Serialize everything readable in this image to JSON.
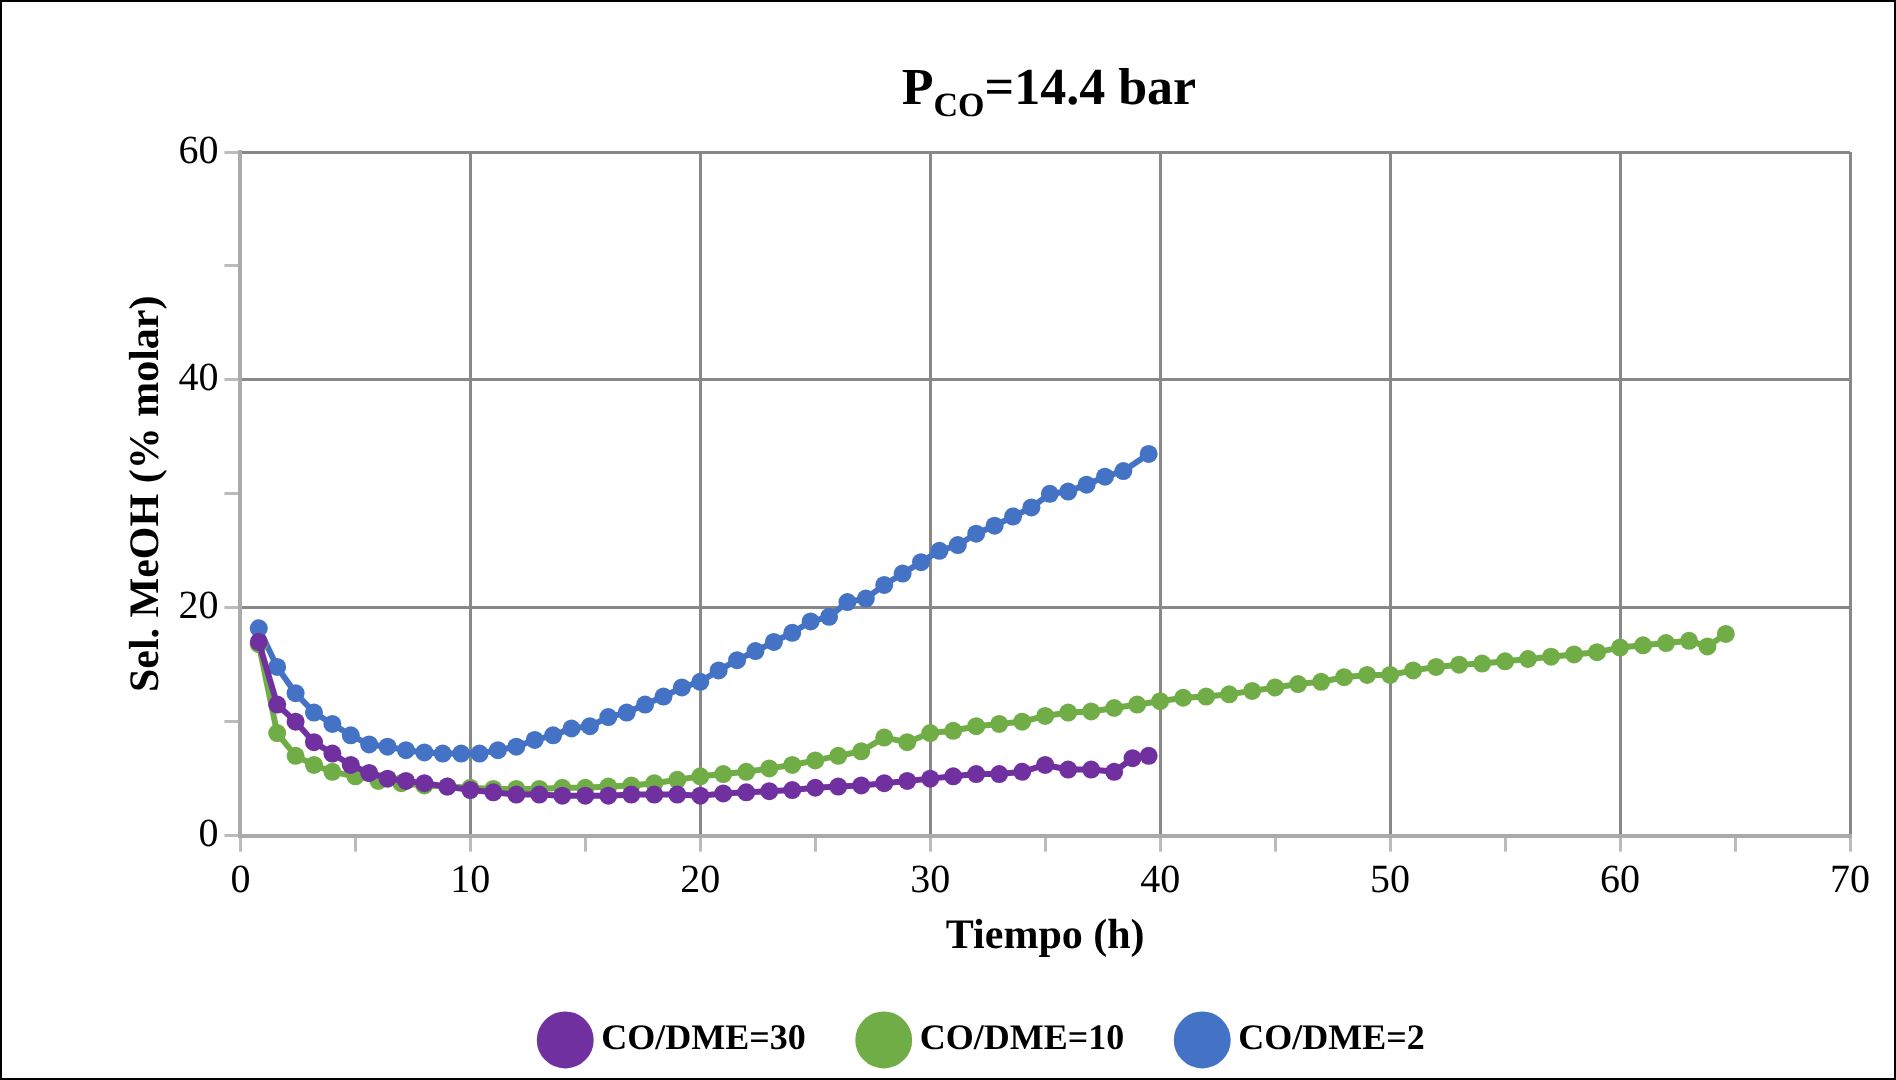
{
  "chart_data": {
    "type": "line",
    "title": "P$_{CO}$=14.4 bar",
    "xlabel": "Tiempo (h)",
    "ylabel": "Sel. MeOH (% molar)",
    "xlim": [
      0,
      70
    ],
    "xticks": [
      0,
      {
        "value": 5,
        "label": null
      },
      10,
      {
        "value": 15,
        "label": null
      },
      20,
      {
        "value": 25,
        "label": null
      },
      30,
      {
        "value": 35,
        "label": null
      },
      40,
      {
        "value": 45,
        "label": null
      },
      50,
      {
        "value": 55,
        "label": null
      },
      60,
      {
        "value": 65,
        "label": null
      },
      70
    ],
    "ylim": [
      0,
      60
    ],
    "yticks": [
      0,
      {
        "value": 10,
        "label": null
      },
      20,
      {
        "value": 30,
        "label": null
      },
      40,
      {
        "value": 50,
        "label": null
      },
      60
    ],
    "grid": true,
    "legend": "bottom",
    "marker": "circle",
    "line_style": "solid",
    "series": [
      {
        "name": "CO/DME=30",
        "color": "#7030a0",
        "x": [
          0.8,
          1.6,
          2.4,
          3.2,
          4,
          4.8,
          5.6,
          6.4,
          7.2,
          8,
          9,
          10,
          11,
          12,
          13,
          14,
          15,
          16,
          17,
          18,
          19,
          20,
          21,
          22,
          23,
          24,
          25,
          26,
          27,
          28,
          29,
          30,
          31,
          32,
          33,
          34,
          35,
          36,
          37,
          38,
          38.8,
          39.5
        ],
        "values": [
          17,
          11.5,
          10,
          8.2,
          7.2,
          6.2,
          5.5,
          5,
          4.8,
          4.6,
          4.3,
          4,
          3.8,
          3.6,
          3.6,
          3.5,
          3.5,
          3.5,
          3.6,
          3.6,
          3.6,
          3.5,
          3.7,
          3.8,
          3.9,
          4,
          4.2,
          4.3,
          4.4,
          4.6,
          4.8,
          5,
          5.2,
          5.4,
          5.4,
          5.6,
          6.2,
          5.8,
          5.8,
          5.6,
          6.8,
          7
        ]
      },
      {
        "name": "CO/DME=10",
        "color": "#70ad47",
        "x": [
          0.8,
          1.6,
          2.4,
          3.2,
          4,
          5,
          6,
          7,
          8,
          9,
          10,
          11,
          12,
          13,
          14,
          15,
          16,
          17,
          18,
          19,
          20,
          21,
          22,
          23,
          24,
          25,
          26,
          27,
          28,
          29,
          30,
          31,
          32,
          33,
          34,
          35,
          36,
          37,
          38,
          39,
          40,
          41,
          42,
          43,
          44,
          45,
          46,
          47,
          48,
          49,
          50,
          51,
          52,
          53,
          54,
          55,
          56,
          57,
          58,
          59,
          60,
          61,
          62,
          63,
          63.8,
          64.6
        ],
        "values": [
          16.8,
          9,
          7,
          6.2,
          5.6,
          5.2,
          4.8,
          4.6,
          4.4,
          4.3,
          4.2,
          4.1,
          4.1,
          4.1,
          4.2,
          4.2,
          4.3,
          4.4,
          4.6,
          4.9,
          5.2,
          5.4,
          5.6,
          5.9,
          6.2,
          6.6,
          7,
          7.4,
          8.6,
          8.2,
          9,
          9.2,
          9.6,
          9.8,
          10,
          10.5,
          10.8,
          10.9,
          11.2,
          11.5,
          11.8,
          12.1,
          12.2,
          12.4,
          12.7,
          13,
          13.3,
          13.5,
          13.9,
          14.1,
          14.1,
          14.5,
          14.8,
          15,
          15.1,
          15.3,
          15.5,
          15.7,
          15.9,
          16.1,
          16.5,
          16.7,
          16.9,
          17.1,
          16.6,
          17.7
        ]
      },
      {
        "name": "CO/DME=2",
        "color": "#4472c4",
        "x": [
          0.8,
          1.6,
          2.4,
          3.2,
          4,
          4.8,
          5.6,
          6.4,
          7.2,
          8,
          8.8,
          9.6,
          10.4,
          11.2,
          12,
          12.8,
          13.6,
          14.4,
          15.2,
          16,
          16.8,
          17.6,
          18.4,
          19.2,
          20,
          20.8,
          21.6,
          22.4,
          23.2,
          24,
          24.8,
          25.6,
          26.4,
          27.2,
          28,
          28.8,
          29.6,
          30.4,
          31.2,
          32,
          32.8,
          33.6,
          34.4,
          35.2,
          36,
          36.8,
          37.6,
          38.4,
          39.5
        ],
        "values": [
          18.2,
          14.8,
          12.5,
          10.8,
          9.8,
          8.8,
          8,
          7.8,
          7.5,
          7.3,
          7.2,
          7.2,
          7.2,
          7.5,
          7.8,
          8.4,
          8.8,
          9.4,
          9.6,
          10.4,
          10.8,
          11.5,
          12.2,
          13,
          13.5,
          14.5,
          15.4,
          16.2,
          17,
          17.8,
          18.8,
          19.2,
          20.5,
          20.8,
          22,
          23,
          24,
          25,
          25.5,
          26.5,
          27.2,
          28,
          28.8,
          30,
          30.2,
          30.8,
          31.5,
          32,
          33.5
        ]
      }
    ]
  }
}
